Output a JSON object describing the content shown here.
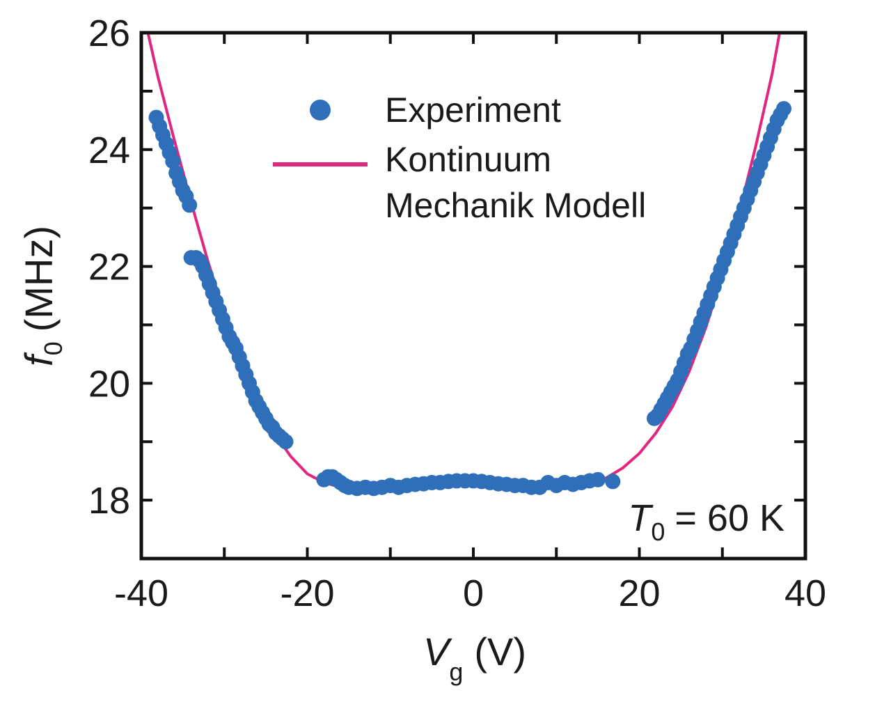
{
  "chart_data": {
    "type": "scatter",
    "title": "",
    "xlabel": {
      "symbol": "V",
      "subscript": "g",
      "unit": "(V)"
    },
    "ylabel": {
      "symbol": "f",
      "subscript": "0",
      "unit": "(MHz)"
    },
    "xlim": [
      -40,
      40
    ],
    "ylim": [
      17,
      26
    ],
    "xticks": [
      -40,
      -20,
      0,
      20,
      40
    ],
    "yticks": [
      18,
      20,
      22,
      24,
      26
    ],
    "grid": false,
    "legend": {
      "placement": "top-center",
      "entries": [
        {
          "label": "Experiment",
          "marker": "circle"
        },
        {
          "label_lines": [
            "Kontinuum",
            "Mechanik Modell"
          ],
          "marker": "line"
        }
      ]
    },
    "annotation": {
      "symbol": "T",
      "subscript": "0",
      "text": "= 60 K",
      "placement": "bottom-right"
    },
    "series": [
      {
        "name": "Experiment",
        "kind": "scatter",
        "color": "#2f6fba",
        "points": [
          [
            -38.2,
            24.55
          ],
          [
            -37.8,
            24.4
          ],
          [
            -37.4,
            24.25
          ],
          [
            -37.0,
            24.1
          ],
          [
            -36.6,
            23.95
          ],
          [
            -36.2,
            23.8
          ],
          [
            -35.8,
            23.6
          ],
          [
            -35.4,
            23.45
          ],
          [
            -35.0,
            23.3
          ],
          [
            -34.6,
            23.2
          ],
          [
            -34.2,
            23.05
          ],
          [
            -34.0,
            22.15
          ],
          [
            -33.4,
            22.15
          ],
          [
            -33.0,
            22.1
          ],
          [
            -32.6,
            22.0
          ],
          [
            -32.2,
            21.85
          ],
          [
            -31.8,
            21.7
          ],
          [
            -31.4,
            21.55
          ],
          [
            -31.0,
            21.4
          ],
          [
            -30.6,
            21.25
          ],
          [
            -30.2,
            21.1
          ],
          [
            -29.8,
            20.95
          ],
          [
            -29.4,
            20.8
          ],
          [
            -29.0,
            20.7
          ],
          [
            -28.6,
            20.6
          ],
          [
            -28.2,
            20.45
          ],
          [
            -27.8,
            20.3
          ],
          [
            -27.4,
            20.15
          ],
          [
            -27.0,
            20.0
          ],
          [
            -26.6,
            19.85
          ],
          [
            -26.2,
            19.7
          ],
          [
            -25.8,
            19.6
          ],
          [
            -25.4,
            19.5
          ],
          [
            -25.0,
            19.4
          ],
          [
            -24.6,
            19.3
          ],
          [
            -24.2,
            19.25
          ],
          [
            -23.8,
            19.15
          ],
          [
            -23.4,
            19.1
          ],
          [
            -23.0,
            19.05
          ],
          [
            -22.6,
            19.0
          ],
          [
            -18.0,
            18.35
          ],
          [
            -17.5,
            18.4
          ],
          [
            -17.0,
            18.4
          ],
          [
            -16.5,
            18.35
          ],
          [
            -16.0,
            18.3
          ],
          [
            -15.5,
            18.25
          ],
          [
            -15.0,
            18.22
          ],
          [
            -14.0,
            18.2
          ],
          [
            -13.0,
            18.22
          ],
          [
            -12.0,
            18.2
          ],
          [
            -11.0,
            18.22
          ],
          [
            -10.0,
            18.25
          ],
          [
            -9.0,
            18.22
          ],
          [
            -8.0,
            18.25
          ],
          [
            -7.0,
            18.27
          ],
          [
            -6.0,
            18.28
          ],
          [
            -5.0,
            18.3
          ],
          [
            -4.0,
            18.3
          ],
          [
            -3.0,
            18.32
          ],
          [
            -2.0,
            18.33
          ],
          [
            -1.0,
            18.33
          ],
          [
            0.0,
            18.33
          ],
          [
            1.0,
            18.32
          ],
          [
            2.0,
            18.3
          ],
          [
            3.0,
            18.28
          ],
          [
            4.0,
            18.27
          ],
          [
            5.0,
            18.25
          ],
          [
            6.0,
            18.25
          ],
          [
            7.0,
            18.22
          ],
          [
            8.0,
            18.22
          ],
          [
            9.0,
            18.3
          ],
          [
            10.0,
            18.25
          ],
          [
            11.0,
            18.3
          ],
          [
            12.0,
            18.27
          ],
          [
            13.0,
            18.3
          ],
          [
            14.0,
            18.33
          ],
          [
            15.0,
            18.35
          ],
          [
            16.8,
            18.32
          ],
          [
            21.8,
            19.4
          ],
          [
            22.2,
            19.45
          ],
          [
            22.6,
            19.55
          ],
          [
            23.0,
            19.65
          ],
          [
            23.4,
            19.75
          ],
          [
            23.8,
            19.85
          ],
          [
            24.2,
            19.95
          ],
          [
            24.6,
            20.05
          ],
          [
            25.0,
            20.2
          ],
          [
            25.4,
            20.35
          ],
          [
            25.8,
            20.5
          ],
          [
            26.2,
            20.6
          ],
          [
            26.6,
            20.75
          ],
          [
            27.0,
            20.9
          ],
          [
            27.4,
            21.05
          ],
          [
            27.8,
            21.2
          ],
          [
            28.2,
            21.35
          ],
          [
            28.6,
            21.5
          ],
          [
            29.0,
            21.65
          ],
          [
            29.4,
            21.8
          ],
          [
            29.8,
            21.95
          ],
          [
            30.2,
            22.1
          ],
          [
            30.6,
            22.25
          ],
          [
            31.0,
            22.4
          ],
          [
            31.4,
            22.55
          ],
          [
            31.8,
            22.7
          ],
          [
            32.2,
            22.85
          ],
          [
            32.6,
            23.0
          ],
          [
            33.0,
            23.15
          ],
          [
            33.4,
            23.3
          ],
          [
            33.8,
            23.45
          ],
          [
            34.2,
            23.6
          ],
          [
            34.6,
            23.75
          ],
          [
            35.0,
            23.9
          ],
          [
            35.4,
            24.05
          ],
          [
            35.8,
            24.2
          ],
          [
            36.2,
            24.35
          ],
          [
            36.6,
            24.5
          ],
          [
            37.0,
            24.6
          ],
          [
            37.4,
            24.7
          ]
        ]
      },
      {
        "name": "Kontinuum Mechanik Modell",
        "kind": "line",
        "color": "#e0267e",
        "points": [
          [
            -39.2,
            26.0
          ],
          [
            -38.0,
            25.25
          ],
          [
            -36.0,
            24.15
          ],
          [
            -34.0,
            23.1
          ],
          [
            -32.0,
            22.1
          ],
          [
            -30.0,
            21.2
          ],
          [
            -28.0,
            20.4
          ],
          [
            -26.0,
            19.7
          ],
          [
            -24.0,
            19.15
          ],
          [
            -22.0,
            18.75
          ],
          [
            -20.0,
            18.45
          ],
          [
            -18.0,
            18.3
          ],
          [
            -16.0,
            18.22
          ],
          [
            -14.0,
            18.2
          ],
          [
            -12.0,
            18.2
          ],
          [
            -10.0,
            18.22
          ],
          [
            -8.0,
            18.23
          ],
          [
            -6.0,
            18.25
          ],
          [
            -4.0,
            18.26
          ],
          [
            -2.0,
            18.27
          ],
          [
            0.0,
            18.27
          ],
          [
            2.0,
            18.26
          ],
          [
            4.0,
            18.25
          ],
          [
            6.0,
            18.23
          ],
          [
            8.0,
            18.21
          ],
          [
            10.0,
            18.2
          ],
          [
            12.0,
            18.22
          ],
          [
            14.0,
            18.27
          ],
          [
            16.0,
            18.38
          ],
          [
            18.0,
            18.55
          ],
          [
            20.0,
            18.8
          ],
          [
            22.0,
            19.15
          ],
          [
            24.0,
            19.6
          ],
          [
            26.0,
            20.2
          ],
          [
            28.0,
            20.95
          ],
          [
            30.0,
            21.85
          ],
          [
            32.0,
            22.9
          ],
          [
            34.0,
            24.05
          ],
          [
            36.0,
            25.3
          ],
          [
            36.9,
            26.0
          ]
        ]
      }
    ]
  }
}
